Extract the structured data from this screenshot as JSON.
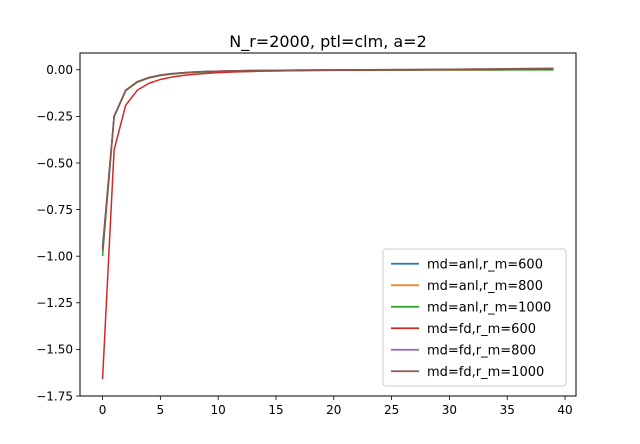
{
  "chart_data": {
    "type": "line",
    "title": "N_r=2000, ptl=clm, a=2",
    "xlabel": "",
    "ylabel": "",
    "xlim": [
      -1.95,
      40.95
    ],
    "ylim": [
      -1.75,
      0.09
    ],
    "xticks": [
      0,
      5,
      10,
      15,
      20,
      25,
      30,
      35,
      40
    ],
    "xtick_labels": [
      "0",
      "5",
      "10",
      "15",
      "20",
      "25",
      "30",
      "35",
      "40"
    ],
    "yticks": [
      0.0,
      -0.25,
      -0.5,
      -0.75,
      -1.0,
      -1.25,
      -1.5,
      -1.75
    ],
    "ytick_labels": [
      "0.00",
      "−0.25",
      "−0.50",
      "−0.75",
      "−1.00",
      "−1.25",
      "−1.50",
      "−1.75"
    ],
    "grid": false,
    "legend_position": "lower-right",
    "x": [
      0,
      1,
      2,
      3,
      4,
      5,
      6,
      7,
      8,
      9,
      10,
      11,
      12,
      13,
      14,
      15,
      16,
      17,
      18,
      19,
      20,
      21,
      22,
      23,
      24,
      25,
      26,
      27,
      28,
      29,
      30,
      31,
      32,
      33,
      34,
      35,
      36,
      37,
      38,
      39
    ],
    "series": [
      {
        "name": "md=anl,r_m=600",
        "color": "#1f77b4",
        "values": [
          -0.95,
          -0.25,
          -0.11,
          -0.065,
          -0.042,
          -0.029,
          -0.021,
          -0.016,
          -0.012,
          -0.0095,
          -0.0077,
          -0.0063,
          -0.0052,
          -0.0043,
          -0.0036,
          -0.003,
          -0.0025,
          -0.0021,
          -0.0017,
          -0.0014,
          -0.0011,
          -0.0009,
          -0.0007,
          -0.0005,
          -0.0003,
          -0.0001,
          0.0001,
          0.0003,
          0.0005,
          0.0008,
          0.0011,
          0.0014,
          0.0017,
          0.0021,
          0.0025,
          0.003,
          0.0035,
          0.004,
          0.0046,
          0.0052
        ]
      },
      {
        "name": "md=anl,r_m=800",
        "color": "#ff7f0e",
        "values": [
          -0.97,
          -0.252,
          -0.112,
          -0.066,
          -0.043,
          -0.03,
          -0.022,
          -0.017,
          -0.013,
          -0.0105,
          -0.0087,
          -0.0073,
          -0.0062,
          -0.0053,
          -0.0046,
          -0.004,
          -0.0035,
          -0.0031,
          -0.0027,
          -0.0024,
          -0.0021,
          -0.0019,
          -0.0017,
          -0.0015,
          -0.0013,
          -0.0012,
          -0.0011,
          -0.001,
          -0.0009,
          -0.0008,
          -0.0007,
          -0.0006,
          -0.0005,
          -0.0004,
          -0.0003,
          -0.0002,
          -0.0001,
          0.0,
          0.0001,
          0.0002
        ]
      },
      {
        "name": "md=anl,r_m=1000",
        "color": "#2ca02c",
        "values": [
          -1.0,
          -0.254,
          -0.113,
          -0.067,
          -0.044,
          -0.031,
          -0.023,
          -0.018,
          -0.014,
          -0.0112,
          -0.0093,
          -0.0079,
          -0.0068,
          -0.0059,
          -0.0052,
          -0.0046,
          -0.0041,
          -0.0037,
          -0.0033,
          -0.003,
          -0.0027,
          -0.0025,
          -0.0023,
          -0.0021,
          -0.0019,
          -0.0018,
          -0.0017,
          -0.0016,
          -0.0015,
          -0.0014,
          -0.0013,
          -0.0012,
          -0.0011,
          -0.001,
          -0.0009,
          -0.0008,
          -0.0008,
          -0.0007,
          -0.0007,
          -0.0006
        ]
      },
      {
        "name": "md=fd,r_m=600",
        "color": "#d62728",
        "values": [
          -1.66,
          -0.43,
          -0.19,
          -0.11,
          -0.073,
          -0.052,
          -0.039,
          -0.03,
          -0.024,
          -0.019,
          -0.0155,
          -0.0128,
          -0.0106,
          -0.0089,
          -0.0075,
          -0.0063,
          -0.0053,
          -0.0045,
          -0.0038,
          -0.0032,
          -0.0027,
          -0.0023,
          -0.0019,
          -0.0016,
          -0.0013,
          -0.001,
          -0.0007,
          -0.0004,
          -0.0001,
          0.0002,
          0.0005,
          0.0008,
          0.0011,
          0.0015,
          0.0019,
          0.0023,
          0.0027,
          0.0032,
          0.0037,
          0.0042
        ]
      },
      {
        "name": "md=fd,r_m=800",
        "color": "#9467bd",
        "values": [
          -0.96,
          -0.248,
          -0.109,
          -0.064,
          -0.041,
          -0.028,
          -0.02,
          -0.015,
          -0.0115,
          -0.009,
          -0.0072,
          -0.0058,
          -0.0047,
          -0.0038,
          -0.0031,
          -0.0025,
          -0.002,
          -0.0016,
          -0.0012,
          -0.0009,
          -0.0006,
          -0.0003,
          0.0,
          0.0003,
          0.0006,
          0.0009,
          0.0012,
          0.0016,
          0.002,
          0.0024,
          0.0029,
          0.0034,
          0.0039,
          0.0045,
          0.0051,
          0.0057,
          0.0063,
          0.007,
          0.0077,
          0.0084
        ]
      },
      {
        "name": "md=fd,r_m=1000",
        "color": "#8c564b",
        "values": [
          -0.97,
          -0.25,
          -0.11,
          -0.065,
          -0.042,
          -0.029,
          -0.021,
          -0.016,
          -0.012,
          -0.0095,
          -0.0076,
          -0.0062,
          -0.0051,
          -0.0042,
          -0.0035,
          -0.0029,
          -0.0024,
          -0.002,
          -0.0016,
          -0.0013,
          -0.001,
          -0.0007,
          -0.0004,
          -0.0001,
          0.0002,
          0.0005,
          0.0008,
          0.0011,
          0.0015,
          0.0019,
          0.0023,
          0.0027,
          0.0032,
          0.0037,
          0.0042,
          0.0047,
          0.0053,
          0.0059,
          0.0065,
          0.0071
        ]
      }
    ]
  }
}
